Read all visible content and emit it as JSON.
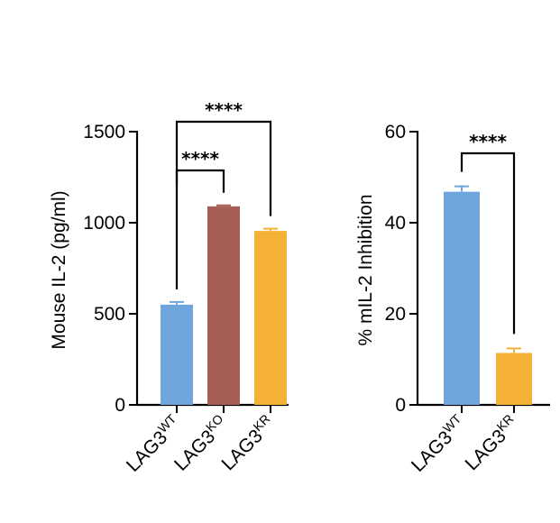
{
  "chart_data": [
    {
      "type": "bar",
      "title": "",
      "xlabel": "",
      "ylabel": "Mouse IL-2 (pg/ml)",
      "ylim": [
        0,
        1500
      ],
      "yticks": [
        "0",
        "500",
        "1000",
        "1500"
      ],
      "yticks_values": [
        0,
        500,
        1000,
        1500
      ],
      "categories": [
        {
          "base": "LAG3",
          "sup": "WT"
        },
        {
          "base": "LAG3",
          "sup": "KO"
        },
        {
          "base": "LAG3",
          "sup": "KR"
        }
      ],
      "values": [
        550,
        1090,
        955
      ],
      "errors": [
        15,
        5,
        12
      ],
      "colors": [
        "#6fa5dc",
        "#a65e57",
        "#f5b135"
      ],
      "significance": [
        {
          "from": 0,
          "to": 1,
          "label": "****"
        },
        {
          "from": 0,
          "to": 2,
          "label": "****"
        }
      ],
      "grid": false
    },
    {
      "type": "bar",
      "title": "",
      "xlabel": "",
      "ylabel": "% mIL-2 Inhibition",
      "ylim": [
        0,
        60
      ],
      "yticks": [
        "0",
        "20",
        "40",
        "60"
      ],
      "yticks_values": [
        0,
        20,
        40,
        60
      ],
      "categories": [
        {
          "base": "LAG3",
          "sup": "WT"
        },
        {
          "base": "LAG3",
          "sup": "KR"
        }
      ],
      "values": [
        46.8,
        11.4
      ],
      "errors": [
        1.2,
        1.0
      ],
      "colors": [
        "#6fa5dc",
        "#f5b135"
      ],
      "significance": [
        {
          "from": 0,
          "to": 1,
          "label": "****"
        }
      ],
      "grid": false
    }
  ]
}
